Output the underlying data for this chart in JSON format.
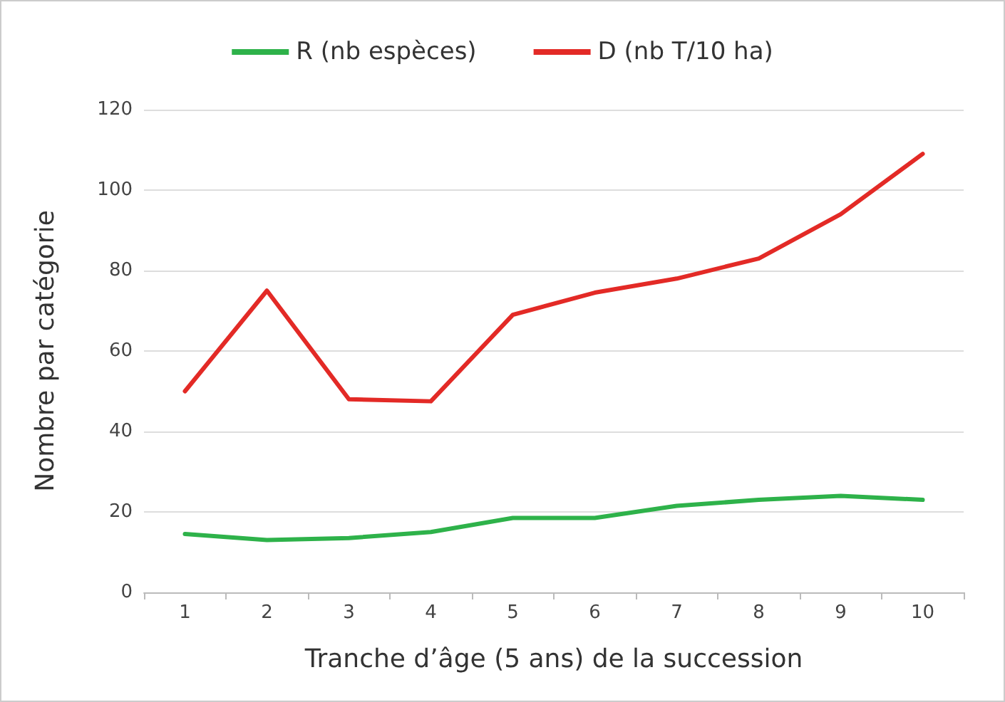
{
  "chart_data": {
    "type": "line",
    "xlabel": "Tranche d’âge (5 ans) de la succession",
    "ylabel": "Nombre par catégorie",
    "categories": [
      "1",
      "2",
      "3",
      "4",
      "5",
      "6",
      "7",
      "8",
      "9",
      "10"
    ],
    "series": [
      {
        "name": "R (nb espèces)",
        "color": "#2eb24a",
        "values": [
          14.5,
          13,
          13.5,
          15,
          18.5,
          18.5,
          21.5,
          23,
          24,
          23
        ]
      },
      {
        "name": "D (nb T/10 ha)",
        "color": "#e32a26",
        "values": [
          50,
          75,
          48,
          47.5,
          69,
          74.5,
          78,
          83,
          94,
          109
        ]
      }
    ],
    "ylim": [
      0,
      120
    ],
    "yticks": [
      0,
      20,
      40,
      60,
      80,
      100,
      120
    ],
    "grid": "y",
    "legend": "top",
    "marker": "none",
    "line_style": "solid"
  }
}
